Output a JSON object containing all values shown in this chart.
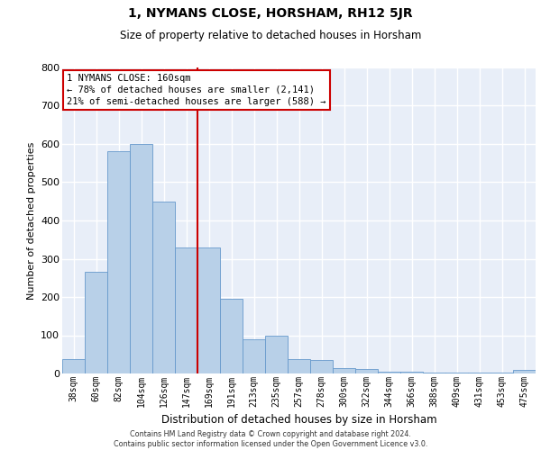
{
  "title": "1, NYMANS CLOSE, HORSHAM, RH12 5JR",
  "subtitle": "Size of property relative to detached houses in Horsham",
  "xlabel": "Distribution of detached houses by size in Horsham",
  "ylabel": "Number of detached properties",
  "categories": [
    "38sqm",
    "60sqm",
    "82sqm",
    "104sqm",
    "126sqm",
    "147sqm",
    "169sqm",
    "191sqm",
    "213sqm",
    "235sqm",
    "257sqm",
    "278sqm",
    "300sqm",
    "322sqm",
    "344sqm",
    "366sqm",
    "388sqm",
    "409sqm",
    "431sqm",
    "453sqm",
    "475sqm"
  ],
  "values": [
    38,
    265,
    580,
    600,
    450,
    330,
    330,
    195,
    90,
    100,
    38,
    35,
    14,
    12,
    5,
    5,
    2,
    2,
    2,
    2,
    10
  ],
  "bar_color": "#b8d0e8",
  "bar_edge_color": "#6699cc",
  "vline_index": 6.0,
  "annotation_title": "1 NYMANS CLOSE: 160sqm",
  "annotation_line1": "← 78% of detached houses are smaller (2,141)",
  "annotation_line2": "21% of semi-detached houses are larger (588) →",
  "vline_color": "#cc0000",
  "annotation_edge_color": "#cc0000",
  "ylim": [
    0,
    800
  ],
  "yticks": [
    0,
    100,
    200,
    300,
    400,
    500,
    600,
    700,
    800
  ],
  "background_color": "#e8eef8",
  "grid_color": "#ffffff",
  "footer_line1": "Contains HM Land Registry data © Crown copyright and database right 2024.",
  "footer_line2": "Contains public sector information licensed under the Open Government Licence v3.0."
}
